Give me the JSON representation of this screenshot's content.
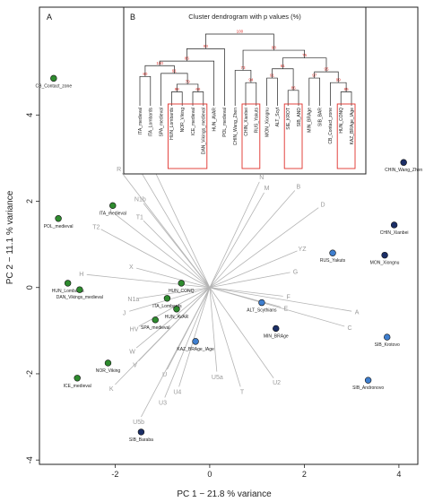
{
  "chart_data": [
    {
      "type": "scatter",
      "panel_label": "A",
      "xlabel": "PC 1 − 21.8 % variance",
      "ylabel": "PC 2 − 11.1 % variance",
      "xlim": [
        -3.6,
        4.4
      ],
      "ylim": [
        -4.1,
        6.5
      ],
      "xticks": [
        -2,
        0,
        2,
        4
      ],
      "yticks": [
        -4,
        -2,
        0,
        2,
        4
      ],
      "grid": false,
      "colors": {
        "green": "#2e8b2e",
        "blue": "#3f7fcf",
        "navy": "#1b2e66",
        "vector": "#b4b4b4",
        "red": "#e0302b"
      },
      "points": [
        {
          "label": "CB_Contact_zone",
          "x": -3.3,
          "y": 4.85,
          "color": "green"
        },
        {
          "label": "POL_medieval",
          "x": -3.2,
          "y": 1.6,
          "color": "green"
        },
        {
          "label": "ITA_medieval",
          "x": -2.05,
          "y": 1.9,
          "color": "green"
        },
        {
          "label": "HUN_Lombards",
          "x": -3.0,
          "y": 0.1,
          "color": "green"
        },
        {
          "label": "DAN_Vikings_medieval",
          "x": -2.75,
          "y": -0.05,
          "color": "green"
        },
        {
          "label": "HUN_CONQ",
          "x": -0.6,
          "y": 0.1,
          "color": "green"
        },
        {
          "label": "ITA_Lombards",
          "x": -0.9,
          "y": -0.25,
          "color": "green"
        },
        {
          "label": "HUN_AVAR",
          "x": -0.7,
          "y": -0.5,
          "color": "green"
        },
        {
          "label": "SPA_medieval",
          "x": -1.15,
          "y": -0.75,
          "color": "green"
        },
        {
          "label": "NOR_Viking",
          "x": -2.15,
          "y": -1.75,
          "color": "green"
        },
        {
          "label": "ICE_medieval",
          "x": -2.8,
          "y": -2.1,
          "color": "green"
        },
        {
          "label": "CHIN_Wang_Zhen",
          "x": 4.1,
          "y": 2.9,
          "color": "navy"
        },
        {
          "label": "CHIN_Xianbei",
          "x": 3.9,
          "y": 1.45,
          "color": "navy"
        },
        {
          "label": "MON_Xiongnu",
          "x": 3.7,
          "y": 0.75,
          "color": "navy"
        },
        {
          "label": "RUS_Yakuts",
          "x": 2.6,
          "y": 0.8,
          "color": "blue"
        },
        {
          "label": "ALT_Scythians",
          "x": 1.1,
          "y": -0.35,
          "color": "blue"
        },
        {
          "label": "MIN_BRAge",
          "x": 1.4,
          "y": -0.95,
          "color": "navy"
        },
        {
          "label": "KAZ_BRAge_IAge",
          "x": -0.3,
          "y": -1.25,
          "color": "blue"
        },
        {
          "label": "SIB_Krotovo",
          "x": 3.75,
          "y": -1.15,
          "color": "blue"
        },
        {
          "label": "SIB_Andronovo",
          "x": 3.35,
          "y": -2.15,
          "color": "blue"
        },
        {
          "label": "SIB_Baraba",
          "x": -1.45,
          "y": -3.35,
          "color": "navy"
        }
      ],
      "vectors": [
        {
          "label": "U8",
          "x": -1.4,
          "y": 3.25
        },
        {
          "label": "U7",
          "x": -1.6,
          "y": 2.95
        },
        {
          "label": "R",
          "x": -1.85,
          "y": 2.65
        },
        {
          "label": "N1b",
          "x": -1.4,
          "y": 1.95
        },
        {
          "label": "I",
          "x": -2.0,
          "y": 1.7
        },
        {
          "label": "T1",
          "x": -1.4,
          "y": 1.55
        },
        {
          "label": "T2",
          "x": -2.3,
          "y": 1.35
        },
        {
          "label": "X",
          "x": -1.55,
          "y": 0.45
        },
        {
          "label": "H",
          "x": -2.6,
          "y": 0.3
        },
        {
          "label": "N1a",
          "x": -1.5,
          "y": -0.25
        },
        {
          "label": "J",
          "x": -1.7,
          "y": -0.55
        },
        {
          "label": "HV",
          "x": -1.5,
          "y": -0.9
        },
        {
          "label": "K",
          "x": -2.0,
          "y": -2.25
        },
        {
          "label": "V",
          "x": -1.5,
          "y": -1.7
        },
        {
          "label": "W",
          "x": -1.55,
          "y": -1.4
        },
        {
          "label": "U5b",
          "x": -1.45,
          "y": -3.0
        },
        {
          "label": "U3",
          "x": -0.95,
          "y": -2.55
        },
        {
          "label": "U4",
          "x": -0.65,
          "y": -2.3
        },
        {
          "label": "U",
          "x": -0.9,
          "y": -1.9
        },
        {
          "label": "U5a",
          "x": 0.15,
          "y": -1.95
        },
        {
          "label": "T",
          "x": 0.65,
          "y": -2.3
        },
        {
          "label": "U2",
          "x": 1.35,
          "y": -2.1
        },
        {
          "label": "A",
          "x": 3.0,
          "y": -0.55
        },
        {
          "label": "C",
          "x": 2.85,
          "y": -0.9
        },
        {
          "label": "E",
          "x": 1.5,
          "y": -0.45
        },
        {
          "label": "F",
          "x": 1.55,
          "y": -0.2
        },
        {
          "label": "G",
          "x": 1.7,
          "y": 0.35
        },
        {
          "label": "YZ",
          "x": 1.85,
          "y": 0.85
        },
        {
          "label": "D",
          "x": 2.3,
          "y": 1.85
        },
        {
          "label": "B",
          "x": 1.8,
          "y": 2.25
        },
        {
          "label": "M",
          "x": 1.15,
          "y": 2.2
        },
        {
          "label": "N",
          "x": 1.05,
          "y": 2.45
        }
      ]
    },
    {
      "type": "dendrogram",
      "panel_label": "B",
      "title": "Cluster dendrogram with p values (%)",
      "leaves": [
        "ITA_medieval",
        "ITA_Lombards",
        "SPA_medieval",
        "HUN_Lombards",
        "NOR_Viking",
        "ICE_medieval",
        "DAN_Vikings_medieval",
        "HUN_AVAR",
        "POL_medieval",
        "CHIN_Wang_Zhen",
        "CHIN_Xianbei",
        "RUS_Yakuts",
        "MON_Xiongnu",
        "ALT_Scyt",
        "SIE_KROT",
        "SIB_AND",
        "MIN_BRAge",
        "SIB_BAR",
        "CB_Contact_zone",
        "HUN_CONQ",
        "KAZ_BRAge_IAge"
      ],
      "p_values": [
        "80",
        "98",
        "68",
        "79",
        "91",
        "100",
        "86",
        "93",
        "94",
        "73",
        "91",
        "86",
        "61",
        "97",
        "85",
        "99",
        "95",
        "75",
        "98",
        "100",
        "89"
      ],
      "highlighted_groups": [
        [
          "HUN_Lombards",
          "NOR_Viking",
          "ICE_medieval",
          "DAN_Vikings_medieval"
        ],
        [
          "CHIN_Xianbei",
          "RUS_Yakuts"
        ],
        [
          "SIE_KROT",
          "SIB_AND"
        ],
        [
          "HUN_CONQ",
          "KAZ_BRAge_IAge"
        ]
      ]
    }
  ]
}
